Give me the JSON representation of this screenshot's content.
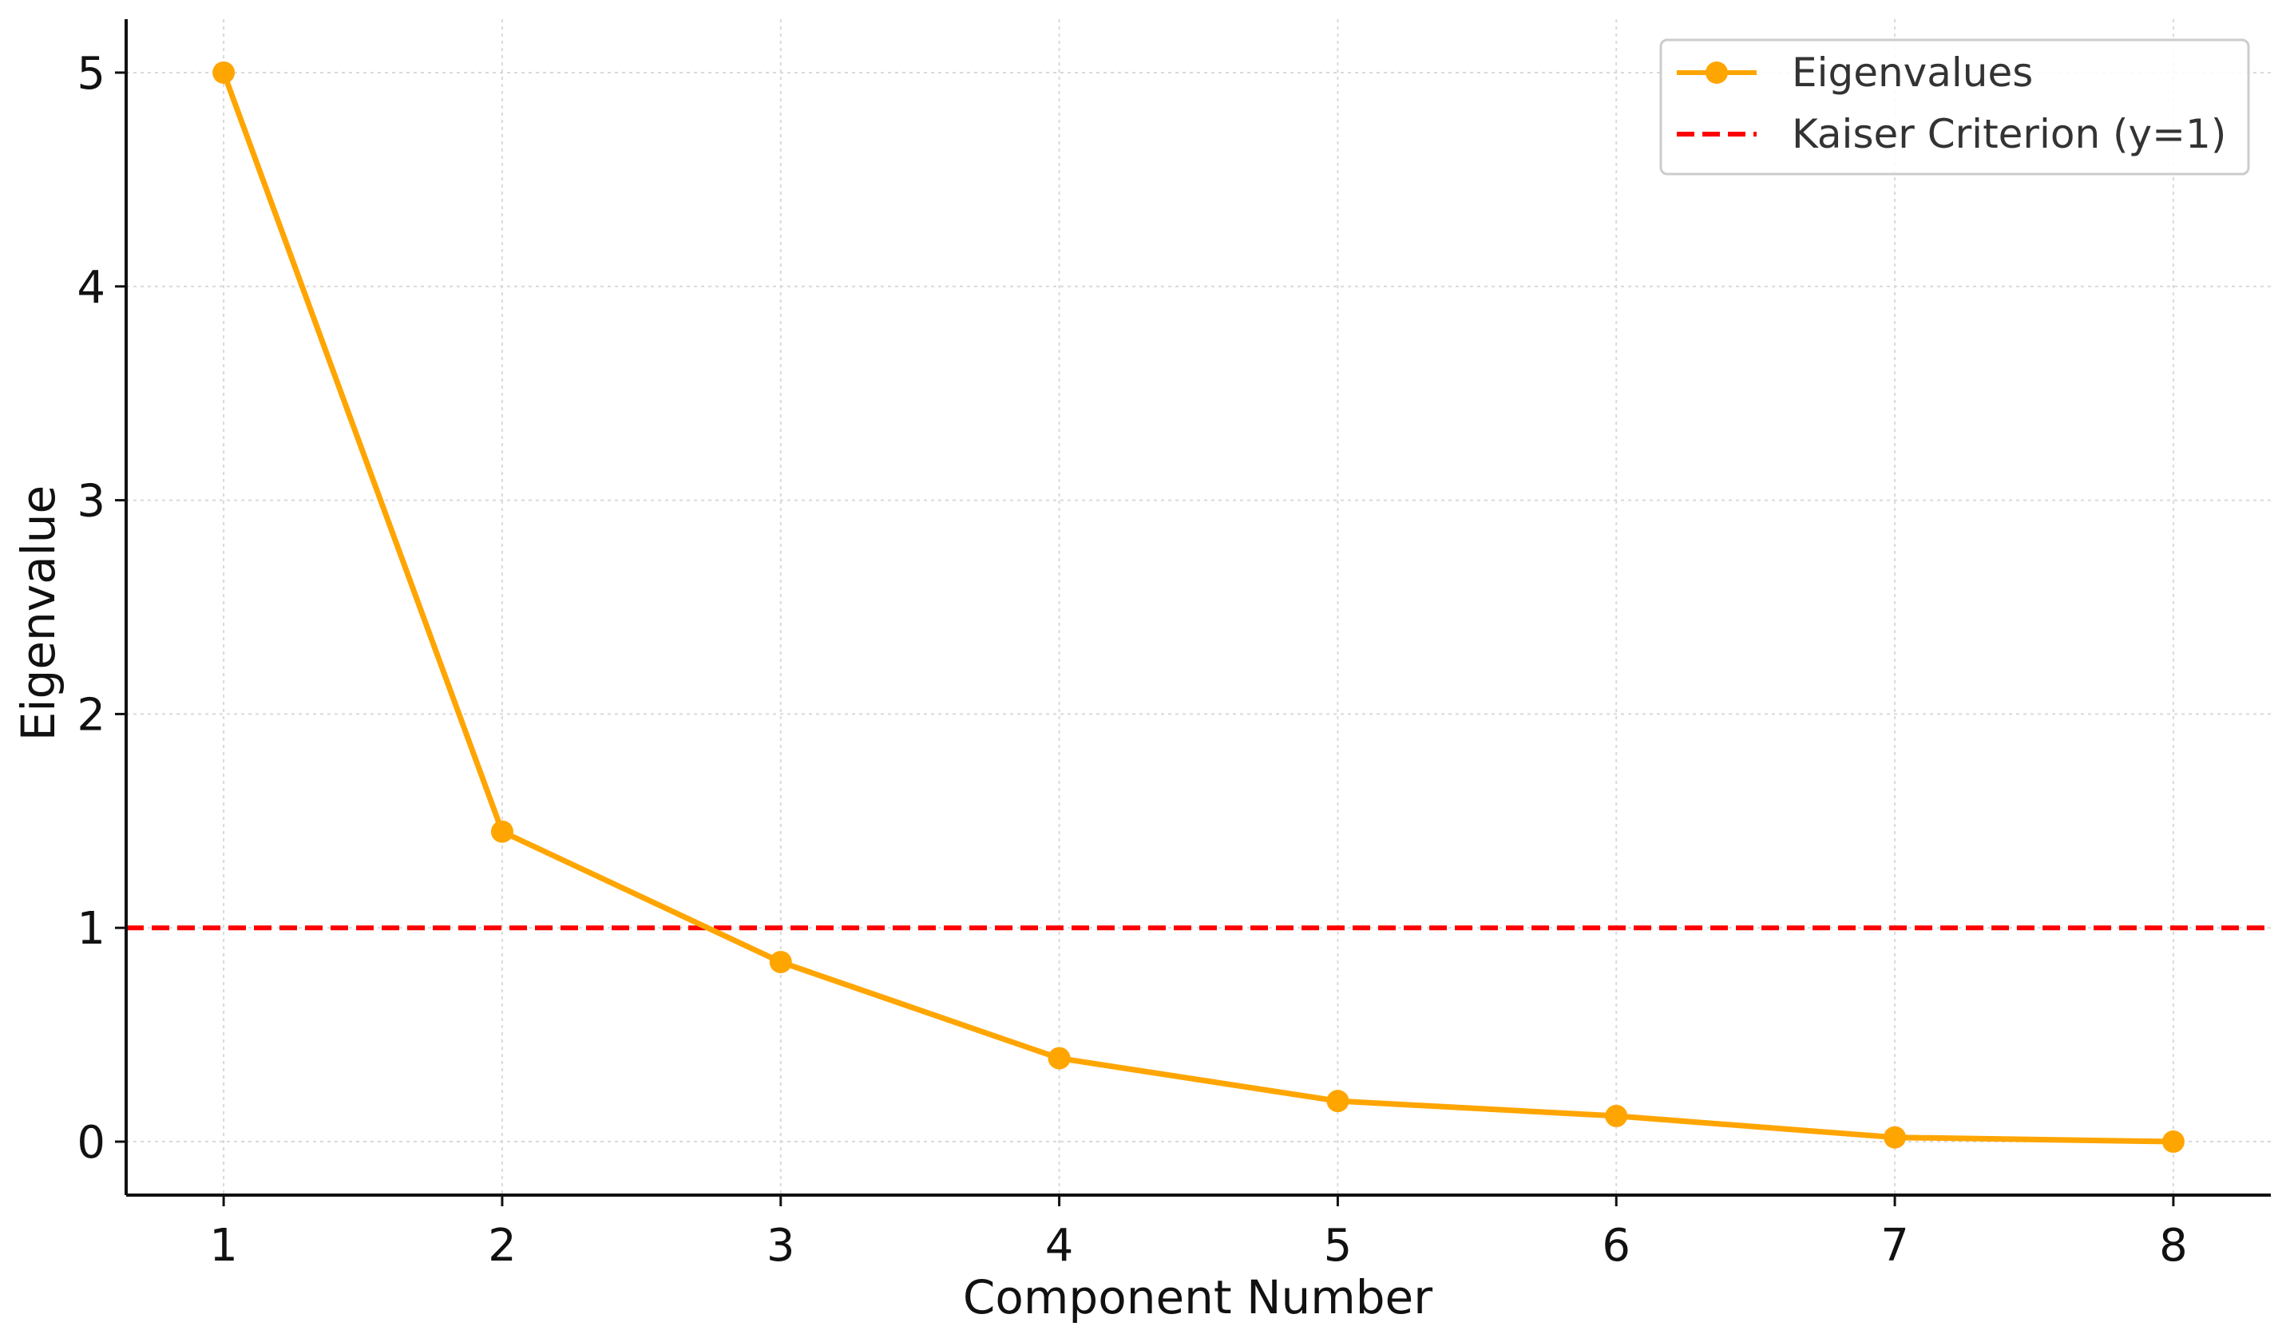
{
  "chart_data": {
    "type": "line",
    "title": "",
    "xlabel": "Component Number",
    "ylabel": "Eigenvalue",
    "x": [
      1,
      2,
      3,
      4,
      5,
      6,
      7,
      8
    ],
    "xlim": [
      0.65,
      8.35
    ],
    "ylim": [
      -0.25,
      5.25
    ],
    "xticks": [
      1,
      2,
      3,
      4,
      5,
      6,
      7,
      8
    ],
    "yticks": [
      0,
      1,
      2,
      3,
      4,
      5
    ],
    "grid": true,
    "legend_position": "top-right",
    "series": [
      {
        "name": "Eigenvalues",
        "values": [
          5.0,
          1.45,
          0.84,
          0.39,
          0.19,
          0.12,
          0.02,
          0.0
        ],
        "color": "#FFA500",
        "style": "solid",
        "marker": "circle"
      }
    ],
    "reference_lines": [
      {
        "name": "Kaiser Criterion (y=1)",
        "y": 1,
        "color": "#FF0000",
        "style": "dashed"
      }
    ]
  }
}
